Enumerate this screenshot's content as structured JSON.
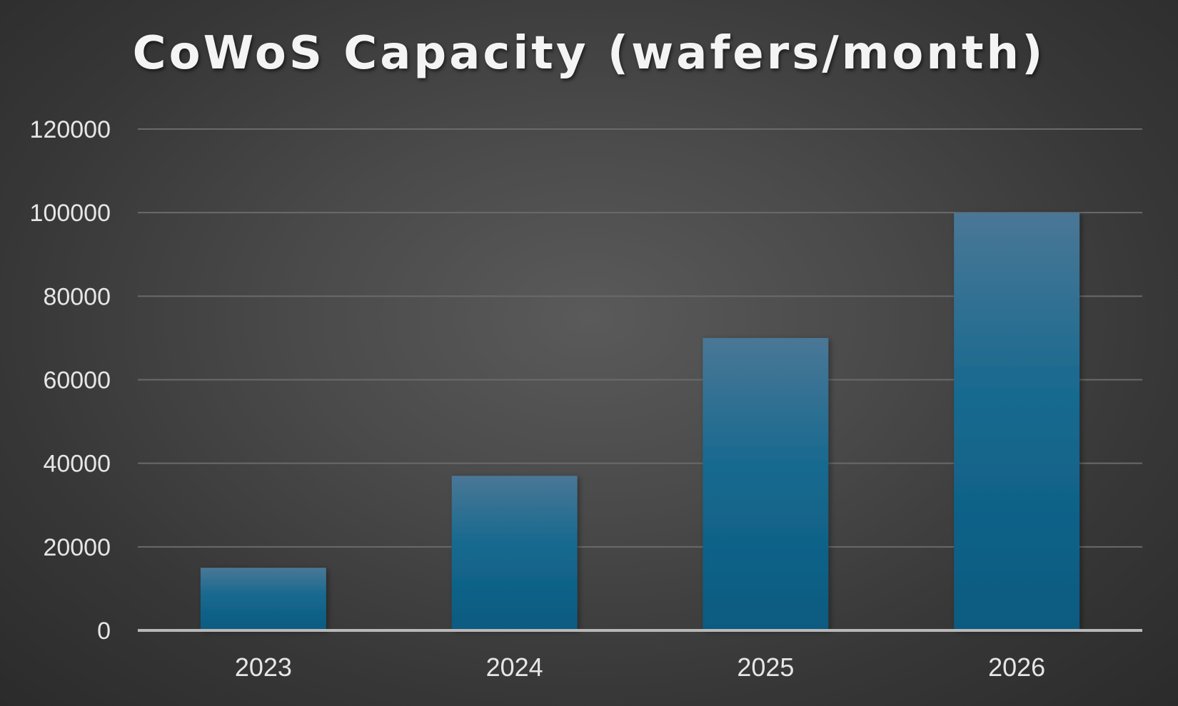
{
  "chart_data": {
    "type": "bar",
    "title": "CoWoS Capacity (wafers/month)",
    "categories": [
      "2023",
      "2024",
      "2025",
      "2026"
    ],
    "values": [
      15000,
      37000,
      70000,
      100000
    ],
    "ylim": [
      0,
      120000
    ],
    "yticks": [
      "0",
      "20000",
      "40000",
      "60000",
      "80000",
      "100000",
      "120000"
    ],
    "xlabel": "",
    "ylabel": "",
    "grid": true,
    "legend": "none",
    "colors": {
      "bar_top": "#4a7796",
      "bar_bottom": "#0a5a80",
      "gridline": "#6a6a6a",
      "baseline": "#b8b8b8"
    }
  }
}
